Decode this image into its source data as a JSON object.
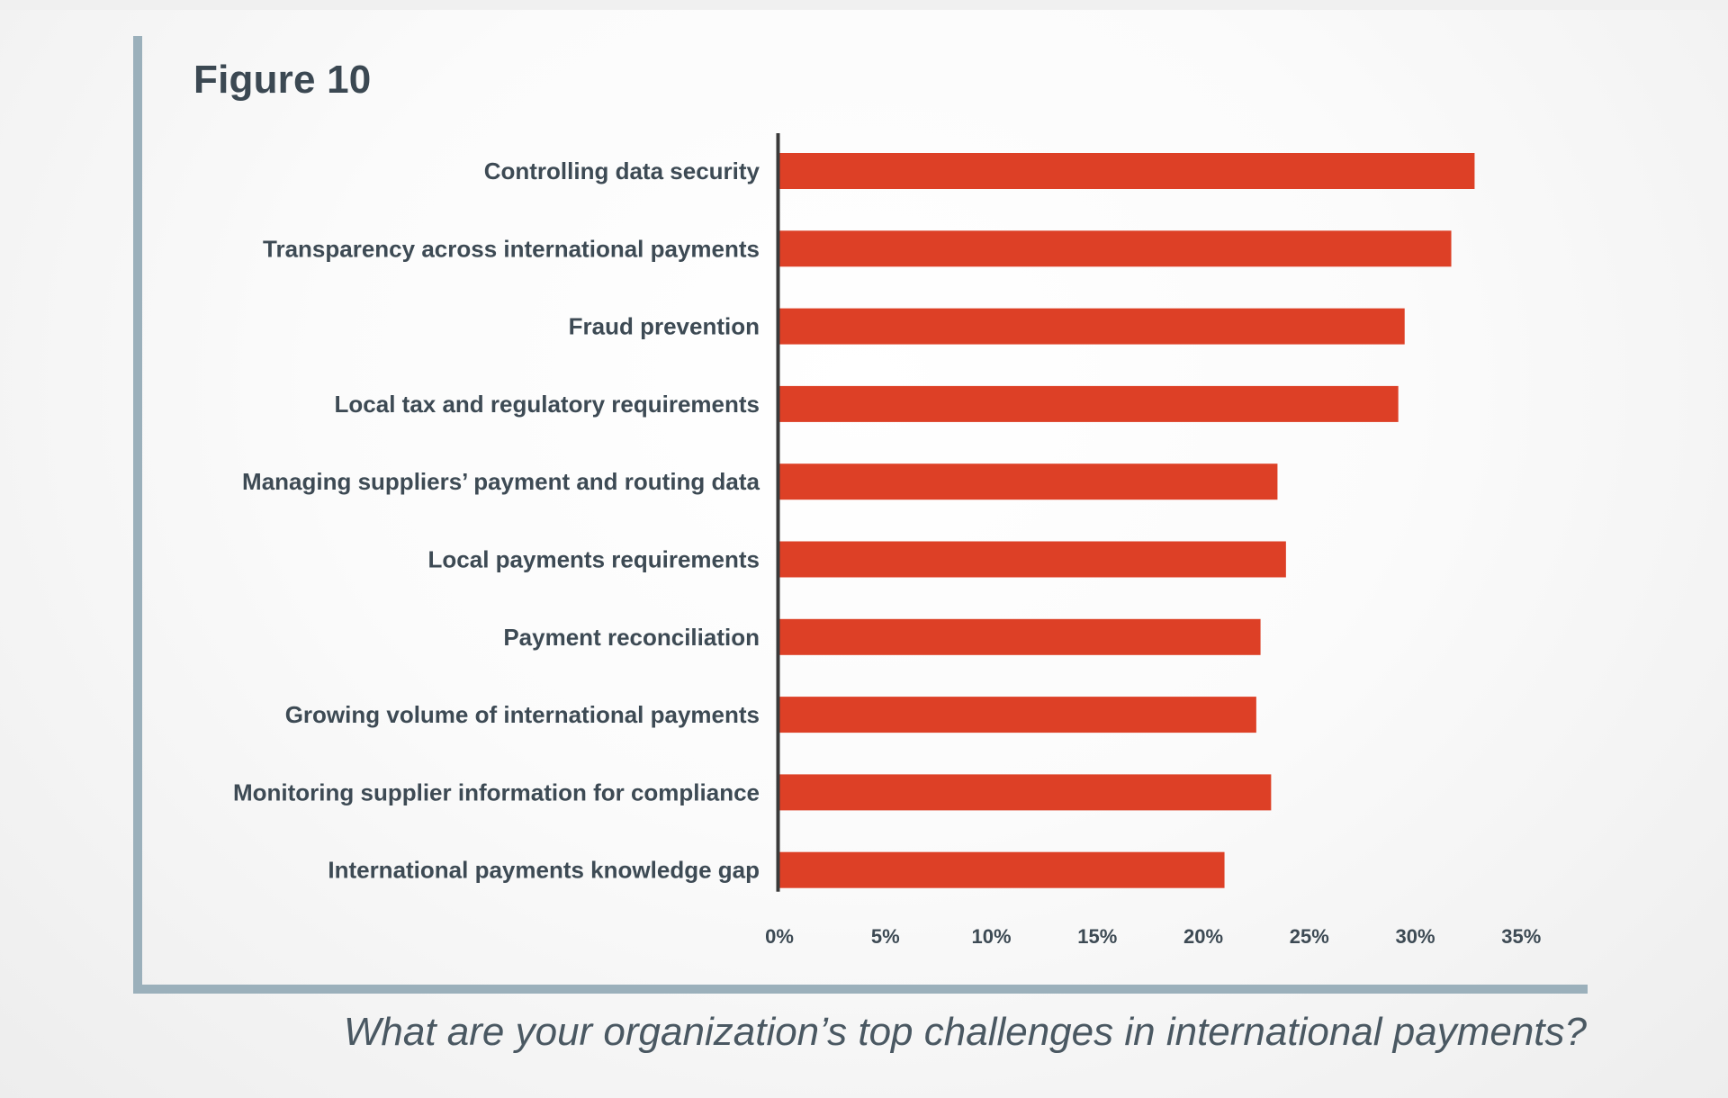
{
  "figure_label": "Figure 10",
  "question": "What are your organization’s top challenges in international payments?",
  "colors": {
    "bar": "#dd4026",
    "axis": "#3a3a3a",
    "frame": "#9bb0bb",
    "text": "#3d4a54"
  },
  "chart_data": {
    "type": "bar",
    "orientation": "horizontal",
    "categories": [
      "Controlling data security",
      "Transparency across international payments",
      "Fraud prevention",
      "Local tax and regulatory requirements",
      "Managing suppliers’ payment and routing data",
      "Local payments requirements",
      "Payment reconciliation",
      "Growing volume of international payments",
      "Monitoring supplier information for compliance",
      "International payments knowledge gap"
    ],
    "values": [
      32.8,
      31.7,
      29.5,
      29.2,
      23.5,
      23.9,
      22.7,
      22.5,
      23.2,
      21.0
    ],
    "unit": "%",
    "xlim": [
      0,
      35
    ],
    "xticks": [
      "0%",
      "5%",
      "10%",
      "15%",
      "20%",
      "25%",
      "30%",
      "35%"
    ],
    "grid": false,
    "legend": "none"
  }
}
